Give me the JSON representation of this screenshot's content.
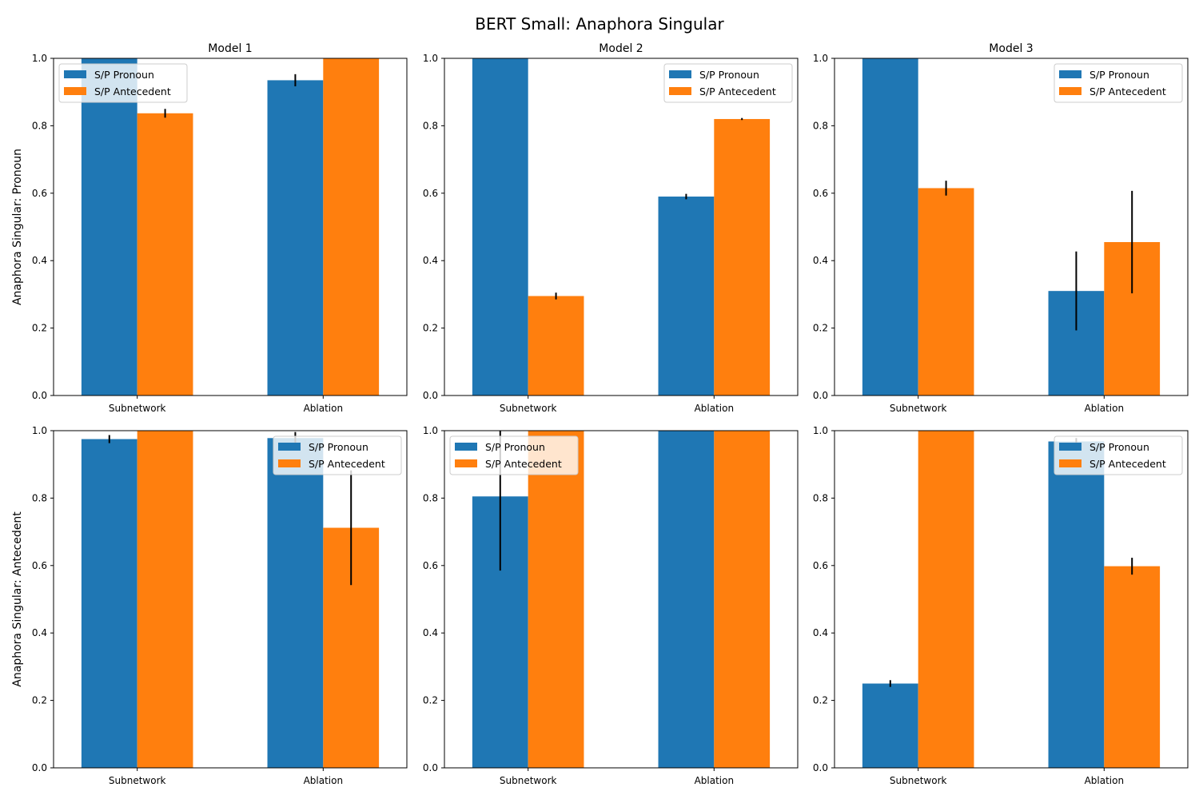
{
  "figure": {
    "title": "BERT Small: Anaphora Singular"
  },
  "colors": {
    "pronoun": "#1f77b4",
    "antecedent": "#ff7f0e",
    "errorbar": "#000000"
  },
  "chart_data": [
    {
      "type": "bar",
      "title": "Model 1",
      "ylabel": "Anaphora Singular: Pronoun",
      "categories": [
        "Subnetwork",
        "Ablation"
      ],
      "ylim": [
        0,
        1.0
      ],
      "yticks": [
        "0.0",
        "0.2",
        "0.4",
        "0.6",
        "0.8",
        "1.0"
      ],
      "legend_position": "upper-left",
      "series": [
        {
          "name": "S/P Pronoun",
          "values": [
            1.0,
            0.935
          ],
          "errors": [
            0.0,
            0.018
          ]
        },
        {
          "name": "S/P Antecedent",
          "values": [
            0.837,
            1.0
          ],
          "errors": [
            0.013,
            0.0
          ]
        }
      ]
    },
    {
      "type": "bar",
      "title": "Model 2",
      "ylabel": "",
      "categories": [
        "Subnetwork",
        "Ablation"
      ],
      "ylim": [
        0,
        1.0
      ],
      "yticks": [
        "0.0",
        "0.2",
        "0.4",
        "0.6",
        "0.8",
        "1.0"
      ],
      "legend_position": "upper-right",
      "series": [
        {
          "name": "S/P Pronoun",
          "values": [
            1.0,
            0.59
          ],
          "errors": [
            0.0,
            0.008
          ]
        },
        {
          "name": "S/P Antecedent",
          "values": [
            0.295,
            0.82
          ],
          "errors": [
            0.01,
            0.003
          ]
        }
      ]
    },
    {
      "type": "bar",
      "title": "Model 3",
      "ylabel": "",
      "categories": [
        "Subnetwork",
        "Ablation"
      ],
      "ylim": [
        0,
        1.0
      ],
      "yticks": [
        "0.0",
        "0.2",
        "0.4",
        "0.6",
        "0.8",
        "1.0"
      ],
      "legend_position": "upper-right",
      "series": [
        {
          "name": "S/P Pronoun",
          "values": [
            1.0,
            0.31
          ],
          "errors": [
            0.0,
            0.117
          ]
        },
        {
          "name": "S/P Antecedent",
          "values": [
            0.615,
            0.455
          ],
          "errors": [
            0.022,
            0.152
          ]
        }
      ]
    },
    {
      "type": "bar",
      "title": "",
      "ylabel": "Anaphora Singular: Antecedent",
      "categories": [
        "Subnetwork",
        "Ablation"
      ],
      "ylim": [
        0,
        1.0
      ],
      "yticks": [
        "0.0",
        "0.2",
        "0.4",
        "0.6",
        "0.8",
        "1.0"
      ],
      "legend_position": "upper-right",
      "series": [
        {
          "name": "S/P Pronoun",
          "values": [
            0.975,
            0.978
          ],
          "errors": [
            0.012,
            0.018
          ]
        },
        {
          "name": "S/P Antecedent",
          "values": [
            1.0,
            0.712
          ],
          "errors": [
            0.0,
            0.17
          ]
        }
      ]
    },
    {
      "type": "bar",
      "title": "",
      "ylabel": "",
      "categories": [
        "Subnetwork",
        "Ablation"
      ],
      "ylim": [
        0,
        1.0
      ],
      "yticks": [
        "0.0",
        "0.2",
        "0.4",
        "0.6",
        "0.8",
        "1.0"
      ],
      "legend_position": "upper-left",
      "series": [
        {
          "name": "S/P Pronoun",
          "values": [
            0.805,
            1.0
          ],
          "errors": [
            0.22,
            0.0
          ]
        },
        {
          "name": "S/P Antecedent",
          "values": [
            1.0,
            1.0
          ],
          "errors": [
            0.0,
            0.0
          ]
        }
      ]
    },
    {
      "type": "bar",
      "title": "",
      "ylabel": "",
      "categories": [
        "Subnetwork",
        "Ablation"
      ],
      "ylim": [
        0,
        1.0
      ],
      "yticks": [
        "0.0",
        "0.2",
        "0.4",
        "0.6",
        "0.8",
        "1.0"
      ],
      "legend_position": "upper-right",
      "series": [
        {
          "name": "S/P Pronoun",
          "values": [
            0.25,
            0.968
          ],
          "errors": [
            0.01,
            0.01
          ]
        },
        {
          "name": "S/P Antecedent",
          "values": [
            1.0,
            0.598
          ],
          "errors": [
            0.0,
            0.025
          ]
        }
      ]
    }
  ]
}
